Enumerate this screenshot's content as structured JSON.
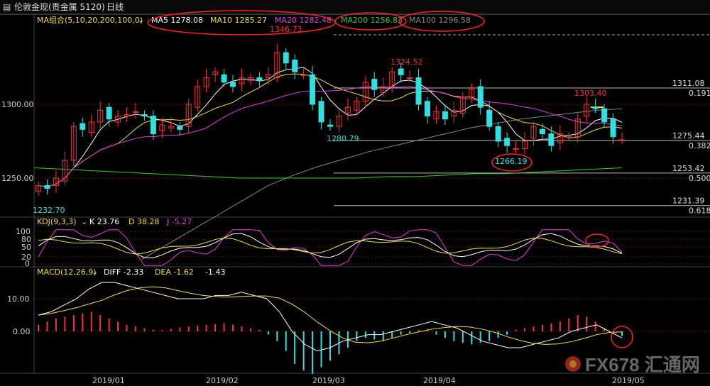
{
  "topbar": {
    "instrument": "伦敦金现(贵金属 5120)",
    "period": "日线",
    "menu_icon": "menu-icon"
  },
  "main_panel": {
    "title": "MA组合(5,10,20,200,100,0)",
    "ma_readouts": [
      {
        "label": "MA5 1278.08",
        "color": "#ffffff"
      },
      {
        "label": "MA10 1285.27",
        "color": "#f0e040"
      },
      {
        "label": "MA20 1282.48",
        "color": "#e040e0"
      },
      {
        "label": "MA200 1256.83",
        "color": "#30d030"
      },
      {
        "label": "MA100 1296.58",
        "color": "#888888"
      }
    ],
    "y_ticks": [
      "1300.00",
      "1250.00"
    ],
    "bottom_left_label": "1232.70"
  },
  "kdj_panel": {
    "title": "KDJ(9,3,3)",
    "readouts": [
      {
        "label": "K 23.76",
        "color": "#ffffff"
      },
      {
        "label": "D 38.28",
        "color": "#f0e040"
      },
      {
        "label": "J -5.27",
        "color": "#e040e0"
      }
    ],
    "y_ticks": [
      "100",
      "80",
      "50",
      "20",
      "0"
    ]
  },
  "macd_panel": {
    "title": "MACD(12,26,9)",
    "readouts": [
      {
        "label": "DIFF -2.33",
        "color": "#ffffff"
      },
      {
        "label": "DEA -1.62",
        "color": "#f0e040"
      },
      {
        "label": "-1.43",
        "color": "#ffffff"
      }
    ],
    "y_ticks": [
      "10.00",
      "0.00"
    ]
  },
  "x_axis_labels": [
    "2019/01",
    "2019/02",
    "2019/03",
    "2019/04",
    "2019/05"
  ],
  "watermark": "FX678 汇通网",
  "colors": {
    "up": "#ff3030",
    "down": "#30e0e0",
    "ma5": "#ffffff",
    "ma10": "#f0e040",
    "ma20": "#e040e0",
    "ma200": "#30d030",
    "ma100": "#888888",
    "annotation": "#ff2020"
  },
  "chart_data": {
    "type": "candlestick",
    "instrument": "伦敦金现",
    "timeframe": "日线",
    "price_annotations": [
      {
        "label": "1346.73",
        "kind": "high",
        "color": "#ff3030"
      },
      {
        "label": "1324.52",
        "kind": "high",
        "color": "#ff3030"
      },
      {
        "label": "1303.40",
        "kind": "high",
        "color": "#ff3030"
      },
      {
        "label": "1280.79",
        "kind": "low",
        "color": "#30e0e0"
      },
      {
        "label": "1266.19",
        "kind": "low",
        "color": "#30e0e0"
      }
    ],
    "fibonacci_levels": [
      {
        "price": "1311.08",
        "ratio": "0.191"
      },
      {
        "price": "1275.44",
        "ratio": "0.382"
      },
      {
        "price": "1253.42",
        "ratio": "0.500"
      },
      {
        "price": "1231.39",
        "ratio": "0.618"
      }
    ],
    "closes": [
      1245,
      1243,
      1250,
      1262,
      1285,
      1283,
      1288,
      1296,
      1290,
      1292,
      1293,
      1295,
      1292,
      1280,
      1286,
      1285,
      1283,
      1300,
      1312,
      1318,
      1322,
      1315,
      1312,
      1318,
      1318,
      1316,
      1320,
      1335,
      1328,
      1322,
      1320,
      1300,
      1288,
      1285,
      1292,
      1298,
      1302,
      1315,
      1310,
      1312,
      1322,
      1320,
      1318,
      1300,
      1292,
      1295,
      1290,
      1296,
      1305,
      1310,
      1298,
      1285,
      1275,
      1272,
      1270,
      1275,
      1285,
      1280,
      1272,
      1280,
      1278,
      1290,
      1300,
      1297,
      1288,
      1278,
      1276
    ],
    "ma200": [
      1257,
      1256,
      1255,
      1254,
      1253,
      1252,
      1251,
      1250,
      1250,
      1250,
      1250,
      1250,
      1251,
      1251,
      1252,
      1253,
      1253,
      1254,
      1255,
      1256,
      1257
    ],
    "kdj": {
      "k": 23.76,
      "d": 38.28,
      "j": -5.27,
      "ylim": [
        0,
        100
      ]
    },
    "macd": {
      "diff": -2.33,
      "dea": -1.62,
      "macd": -1.43,
      "histogram": [
        2,
        3,
        4,
        4.5,
        5,
        5.5,
        6,
        5,
        4,
        3,
        2,
        1.5,
        1,
        0.5,
        0.4,
        0.8,
        1.2,
        1.5,
        1.8,
        2.0,
        2.2,
        2.5,
        2.0,
        1.5,
        1.0,
        0.5,
        -1,
        -3,
        -6,
        -10,
        -12,
        -13,
        -11,
        -9,
        -7,
        -5,
        -3,
        -2,
        -2.5,
        -3,
        -2,
        -1,
        -0.5,
        0.5,
        0.8,
        -1,
        -2,
        -3,
        -3.5,
        -4,
        -3.5,
        -3,
        -2,
        -1,
        0.5,
        1,
        1.5,
        2,
        2.5,
        3,
        4,
        5,
        4.5,
        3,
        1,
        -0.8,
        -1.4
      ]
    }
  }
}
